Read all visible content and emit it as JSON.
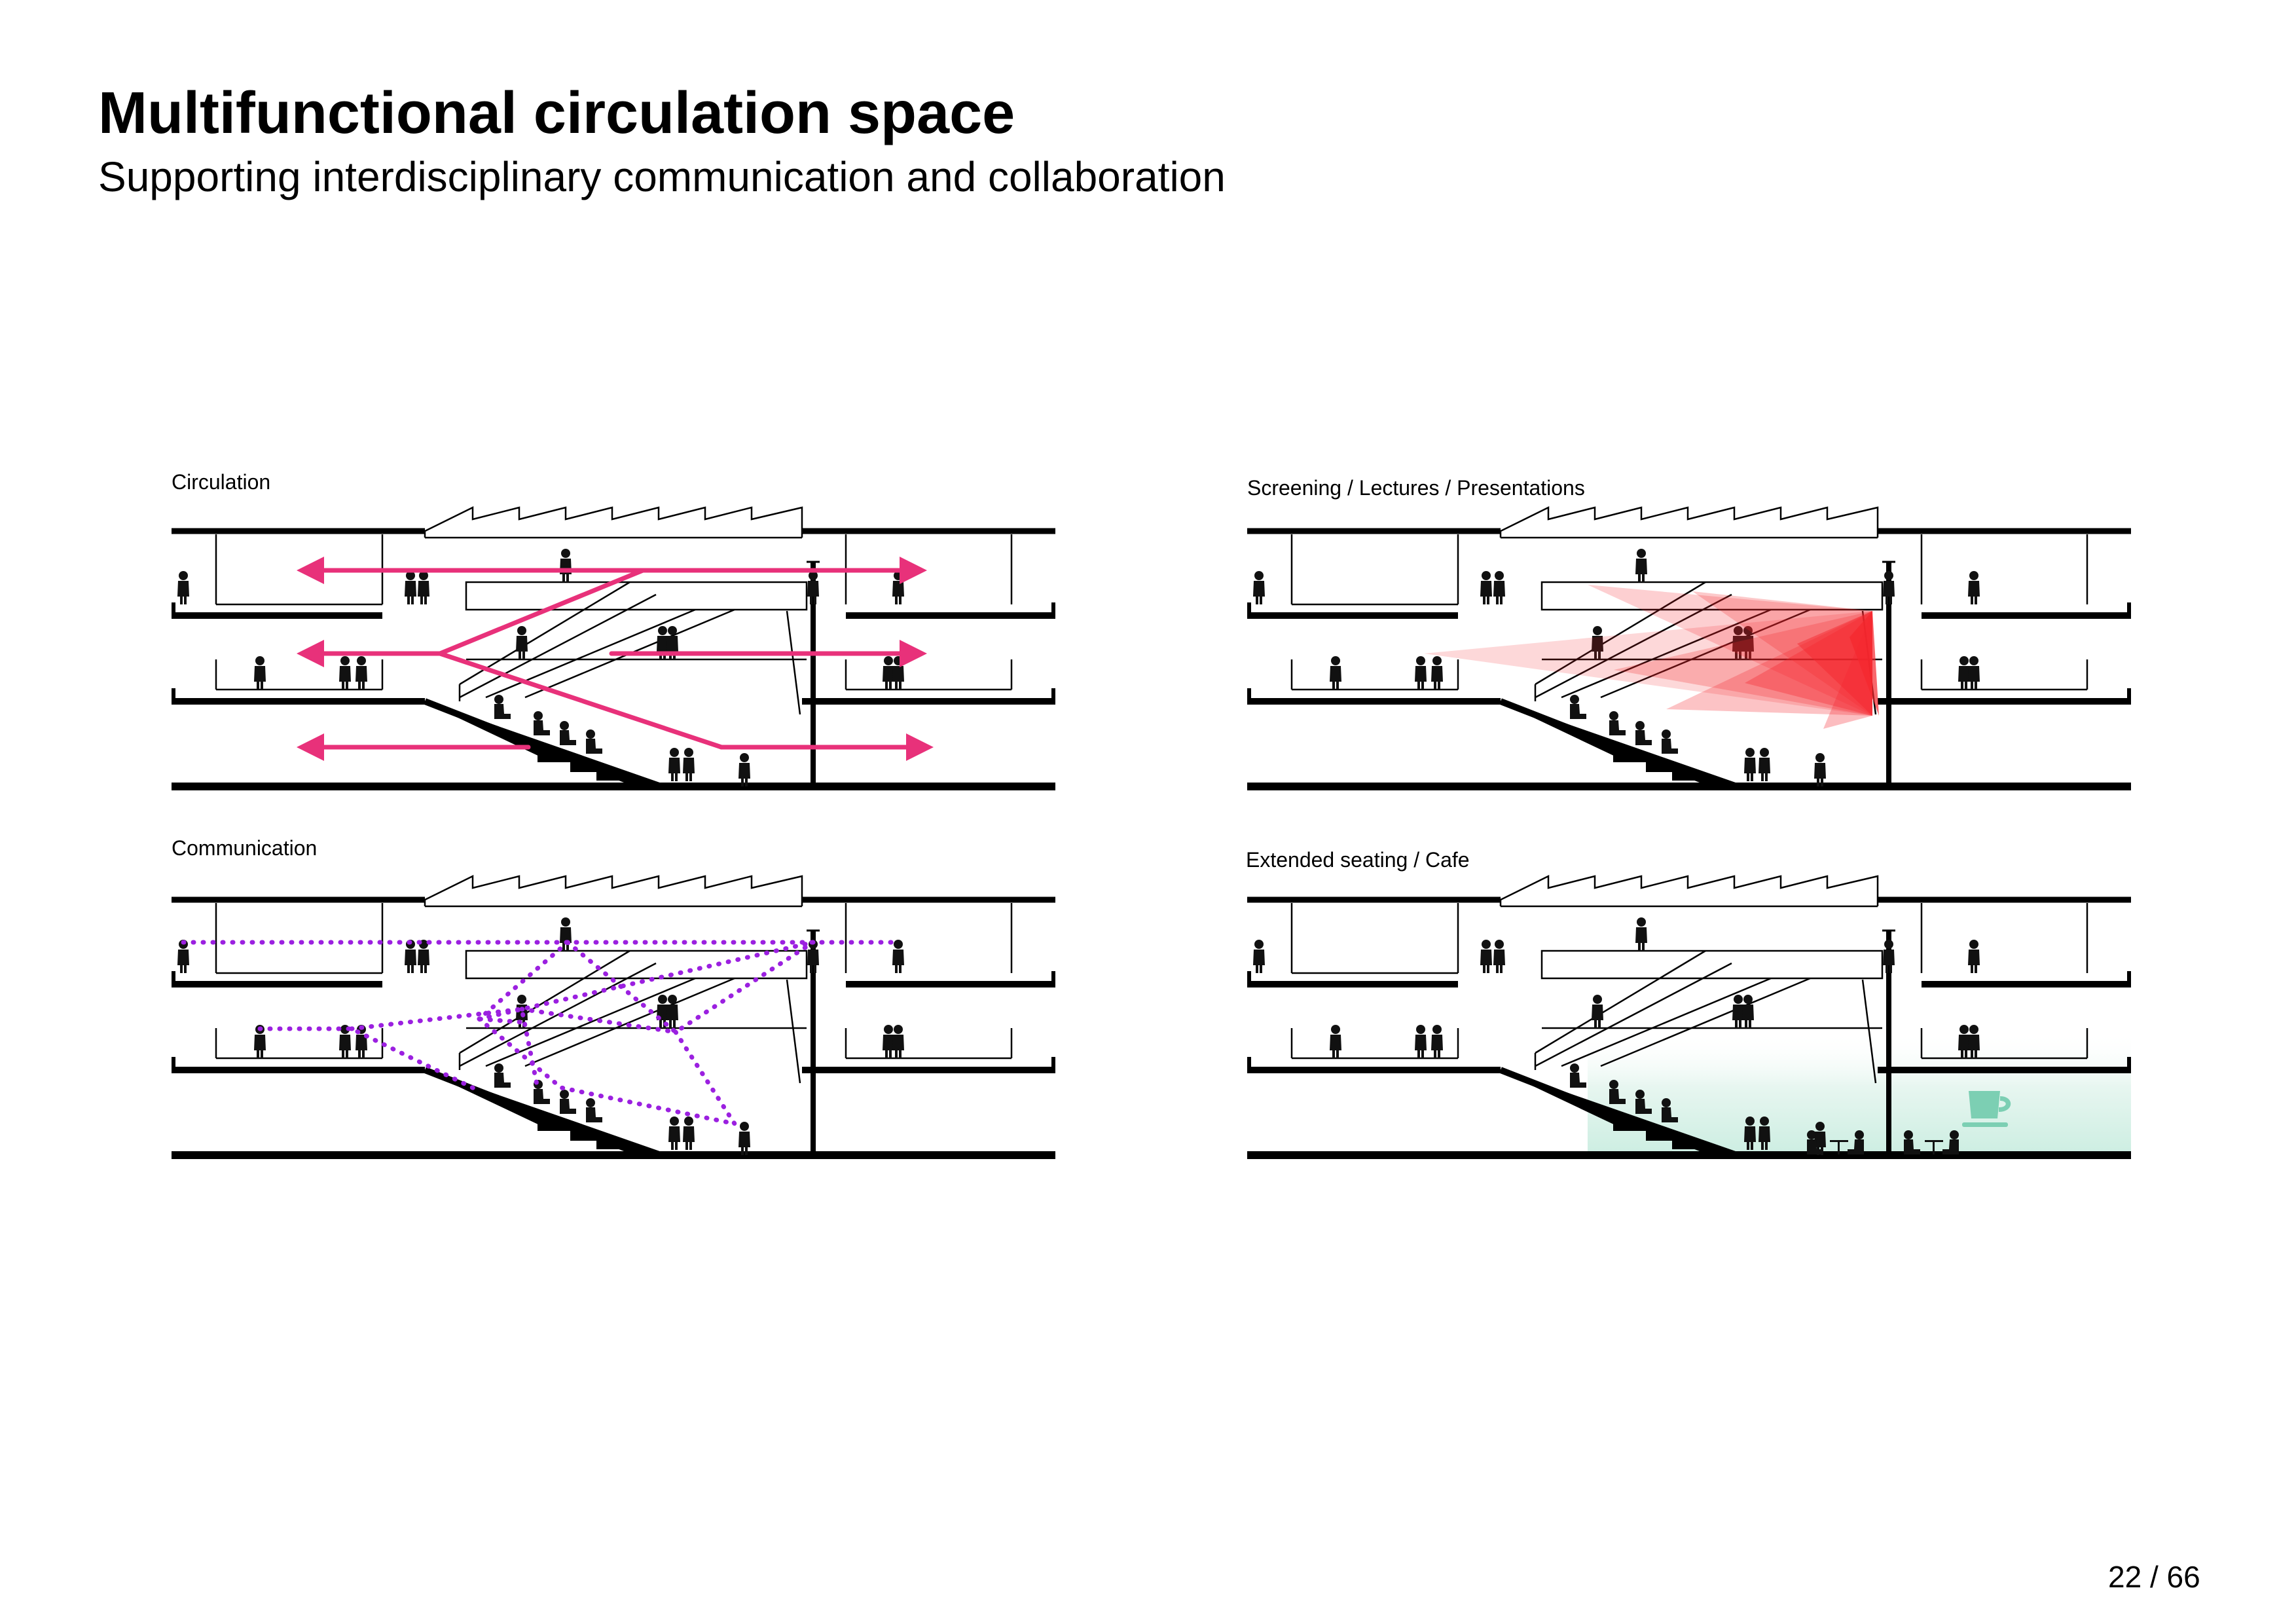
{
  "title": "Multifunctional circulation space",
  "subtitle": "Supporting interdisciplinary communication and collaboration",
  "panels": [
    {
      "label": "Circulation",
      "overlay": "circulation-arrows",
      "color": "#e8317a"
    },
    {
      "label": "Screening / Lectures / Presentations",
      "overlay": "screening-beams",
      "color": "#f5262d"
    },
    {
      "label": "Communication",
      "overlay": "communication-links",
      "color": "#9b20e0"
    },
    {
      "label": "Extended seating / Cafe",
      "overlay": "cafe-zone",
      "color": "#7ccfb3",
      "icon": "coffee-cup-icon"
    }
  ],
  "page_number": "22 / 66"
}
